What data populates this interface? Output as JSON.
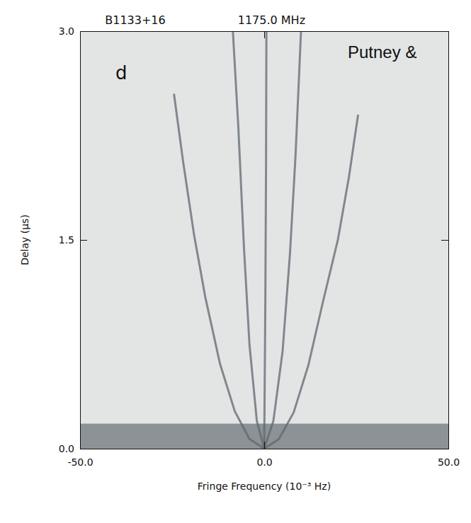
{
  "chart_data": {
    "type": "line",
    "title": "B1133+16",
    "subtitle": "1175.0 MHz",
    "annotations": [
      "Putney &",
      "d"
    ],
    "x_label": "Fringe Frequency (10⁻³ Hz)",
    "y_label": "Delay (μs)",
    "xlim": [
      -50,
      50
    ],
    "ylim": [
      0,
      3
    ],
    "xticks": [
      {
        "value": -50,
        "label": "-50.0"
      },
      {
        "value": 0,
        "label": "0.0"
      },
      {
        "value": 50,
        "label": "50.0"
      }
    ],
    "yticks": [
      {
        "value": 0,
        "label": "0.0"
      },
      {
        "value": 1.5,
        "label": "1.5"
      },
      {
        "value": 3,
        "label": "3.0"
      }
    ],
    "low_delay_band": [
      0,
      0.18
    ],
    "color": "#5f6870",
    "series": [
      {
        "x": [
          0,
          -4,
          -8,
          -12,
          -16,
          -19,
          -22,
          -24.5
        ],
        "values": [
          0,
          0.07,
          0.27,
          0.61,
          1.09,
          1.53,
          2.06,
          2.55
        ]
      },
      {
        "x": [
          0,
          -2,
          -4,
          -5.5,
          -7,
          -8.5
        ],
        "values": [
          0,
          0.2,
          0.75,
          1.45,
          2.3,
          3.0
        ]
      },
      {
        "x": [
          0,
          0.3,
          0.5,
          0.6
        ],
        "values": [
          0,
          1,
          2,
          3
        ]
      },
      {
        "x": [
          0,
          2.5,
          5,
          7,
          8.5,
          10
        ],
        "values": [
          0,
          0.2,
          0.7,
          1.4,
          2.1,
          3.0
        ]
      },
      {
        "x": [
          0,
          4,
          8,
          12,
          16,
          20,
          23,
          25.5
        ],
        "values": [
          0,
          0.07,
          0.26,
          0.6,
          1.06,
          1.5,
          1.95,
          2.4
        ]
      }
    ]
  }
}
